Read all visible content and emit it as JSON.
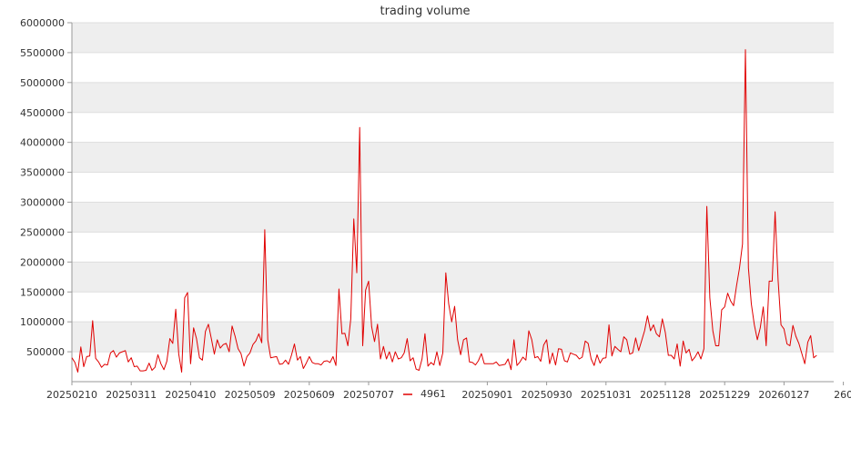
{
  "chart_data": {
    "type": "line",
    "title": "trading volume",
    "xlabel": "",
    "ylabel": "",
    "legend": {
      "label": "4961",
      "color": "#e00000",
      "placement": "bottom-center"
    },
    "colors": {
      "line": "#e00000",
      "band": "#eeeeee",
      "grid": "#dddddd",
      "axis": "#999999"
    },
    "grid": true,
    "ylim": [
      0,
      6000000
    ],
    "y_ticks": [
      500000,
      1000000,
      1500000,
      2000000,
      2500000,
      3000000,
      3500000,
      4000000,
      4500000,
      5000000,
      5500000,
      6000000
    ],
    "y_tick_labels": [
      "500000",
      "1000000",
      "1500000",
      "2000000",
      "2500000",
      "3000000",
      "3500000",
      "4000000",
      "4500000",
      "5000000",
      "5500000",
      "6000000"
    ],
    "x_tick_labels": [
      "20250210",
      "20250311",
      "20250410",
      "20250509",
      "20250609",
      "20250707",
      "20250901",
      "20250930",
      "20251031",
      "20251128",
      "20251229",
      "20260127",
      "260"
    ],
    "x_tick_index": [
      0,
      20,
      40,
      60,
      80,
      100,
      140,
      160,
      180,
      200,
      220,
      240,
      260
    ],
    "series": [
      {
        "values": [
          400000,
          320000,
          160000,
          580000,
          250000,
          420000,
          430000,
          1020000,
          390000,
          330000,
          240000,
          290000,
          280000,
          480000,
          520000,
          410000,
          480000,
          500000,
          520000,
          330000,
          400000,
          250000,
          260000,
          180000,
          180000,
          190000,
          310000,
          190000,
          240000,
          450000,
          300000,
          200000,
          340000,
          720000,
          640000,
          1210000,
          460000,
          160000,
          1400000,
          1490000,
          300000,
          900000,
          720000,
          400000,
          360000,
          840000,
          960000,
          720000,
          460000,
          700000,
          560000,
          620000,
          640000,
          500000,
          930000,
          760000,
          550000,
          470000,
          260000,
          420000,
          480000,
          620000,
          680000,
          800000,
          650000,
          2540000,
          700000,
          400000,
          410000,
          420000,
          290000,
          300000,
          360000,
          290000,
          440000,
          630000,
          360000,
          420000,
          220000,
          310000,
          420000,
          320000,
          300000,
          300000,
          280000,
          340000,
          350000,
          320000,
          420000,
          270000,
          1550000,
          800000,
          810000,
          600000,
          1050000,
          2720000,
          1820000,
          4250000,
          600000,
          1530000,
          1680000,
          920000,
          670000,
          960000,
          380000,
          590000,
          380000,
          500000,
          330000,
          500000,
          380000,
          400000,
          480000,
          720000,
          350000,
          400000,
          210000,
          190000,
          380000,
          800000,
          260000,
          320000,
          280000,
          500000,
          270000,
          480000,
          1820000,
          1300000,
          1000000,
          1260000,
          700000,
          450000,
          700000,
          730000,
          330000,
          320000,
          280000,
          350000,
          470000,
          300000,
          300000,
          300000,
          300000,
          330000,
          270000,
          280000,
          290000,
          380000,
          200000,
          700000,
          270000,
          330000,
          410000,
          360000,
          850000,
          700000,
          400000,
          420000,
          340000,
          610000,
          700000,
          300000,
          480000,
          280000,
          550000,
          540000,
          350000,
          330000,
          480000,
          460000,
          440000,
          380000,
          410000,
          680000,
          640000,
          380000,
          270000,
          450000,
          310000,
          390000,
          400000,
          950000,
          430000,
          590000,
          540000,
          500000,
          750000,
          700000,
          460000,
          480000,
          730000,
          520000,
          680000,
          850000,
          1100000,
          850000,
          950000,
          800000,
          750000,
          1050000,
          820000,
          440000,
          440000,
          380000,
          630000,
          260000,
          680000,
          480000,
          540000,
          350000,
          410000,
          500000,
          380000,
          550000,
          2930000,
          1400000,
          850000,
          600000,
          600000,
          1200000,
          1250000,
          1480000,
          1350000,
          1270000,
          1600000,
          1900000,
          2300000,
          5550000,
          1900000,
          1300000,
          950000,
          700000,
          900000,
          1250000,
          600000,
          1680000,
          1680000,
          2840000,
          1700000,
          950000,
          880000,
          630000,
          600000,
          940000,
          760000,
          640000,
          470000,
          300000,
          660000,
          770000,
          400000,
          440000
        ]
      }
    ]
  }
}
